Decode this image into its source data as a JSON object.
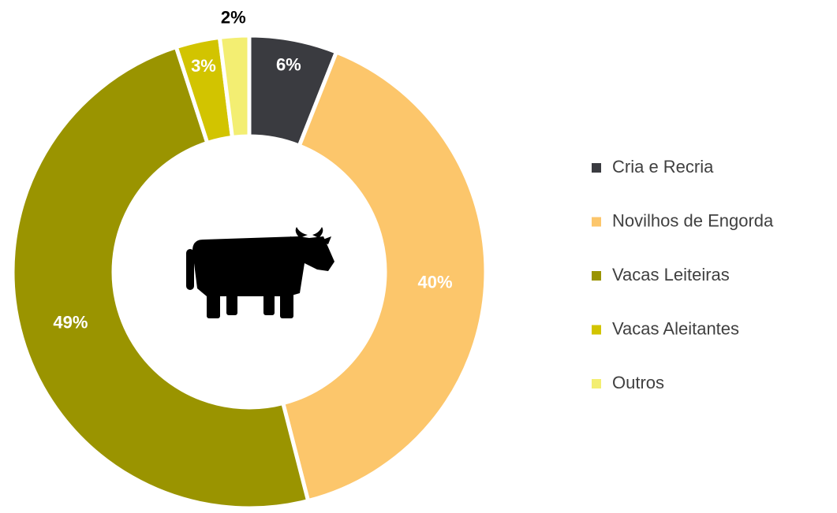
{
  "chart_data": {
    "type": "donut",
    "categories": [
      "Cria e Recria",
      "Novilhos de Engorda",
      "Vacas Leiteiras",
      "Vacas Aleitantes",
      "Outros"
    ],
    "values": [
      6,
      40,
      49,
      3,
      2
    ],
    "value_labels": [
      "6%",
      "40%",
      "49%",
      "3%",
      "2%"
    ],
    "colors": [
      "#3a3b40",
      "#fcc66b",
      "#9a9400",
      "#d2c400",
      "#f3ee72"
    ],
    "legend": "right"
  }
}
